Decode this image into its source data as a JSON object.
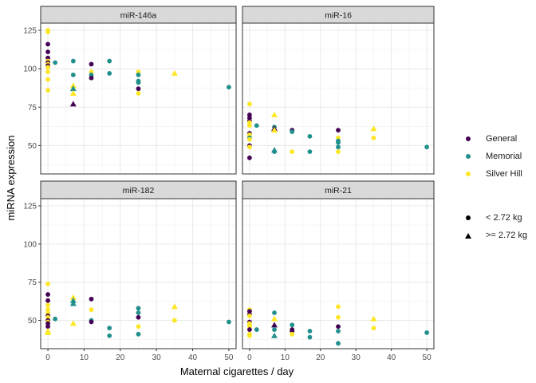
{
  "chart_data": {
    "type": "scatter",
    "xlabel": "Maternal cigarettes / day",
    "ylabel": "miRNA expression",
    "xlim": [
      -2,
      52
    ],
    "ylim": [
      31.5,
      129.7
    ],
    "x_ticks": [
      "0",
      "10",
      "20",
      "30",
      "40",
      "50"
    ],
    "y_ticks": [
      "50",
      "75",
      "100",
      "125"
    ],
    "grid": true,
    "legend_position": "right",
    "color_legend": [
      {
        "name": "General",
        "color": "#440154"
      },
      {
        "name": "Memorial",
        "color": "#21908C"
      },
      {
        "name": "Silver Hill",
        "color": "#FDE725"
      }
    ],
    "shape_legend": [
      {
        "name": "< 2.72 kg",
        "shape": "circle"
      },
      {
        "name": ">= 2.72 kg",
        "shape": "triangle"
      }
    ],
    "panels": [
      {
        "title": "miR-146a",
        "points": [
          [
            0,
            125,
            "Silver Hill",
            "circle"
          ],
          [
            0,
            124,
            "Silver Hill",
            "circle"
          ],
          [
            0,
            116,
            "General",
            "circle"
          ],
          [
            0,
            111,
            "General",
            "circle"
          ],
          [
            0,
            107,
            "General",
            "circle"
          ],
          [
            0,
            105,
            "Silver Hill",
            "circle"
          ],
          [
            0,
            104,
            "General",
            "circle"
          ],
          [
            0,
            103,
            "Silver Hill",
            "circle"
          ],
          [
            0,
            102,
            "General",
            "circle"
          ],
          [
            0,
            101,
            "Silver Hill",
            "circle"
          ],
          [
            0,
            98,
            "Silver Hill",
            "circle"
          ],
          [
            0,
            93,
            "Silver Hill",
            "circle"
          ],
          [
            0,
            86,
            "Silver Hill",
            "circle"
          ],
          [
            2,
            104,
            "Memorial",
            "circle"
          ],
          [
            7,
            105,
            "Memorial",
            "circle"
          ],
          [
            7,
            96,
            "Memorial",
            "circle"
          ],
          [
            7,
            89,
            "Silver Hill",
            "triangle"
          ],
          [
            7,
            87,
            "Memorial",
            "triangle"
          ],
          [
            7,
            84,
            "Silver Hill",
            "triangle"
          ],
          [
            7,
            77,
            "General",
            "triangle"
          ],
          [
            12,
            103,
            "General",
            "circle"
          ],
          [
            12,
            98,
            "Silver Hill",
            "circle"
          ],
          [
            12,
            96,
            "Memorial",
            "circle"
          ],
          [
            12,
            94,
            "General",
            "circle"
          ],
          [
            17,
            105,
            "Memorial",
            "circle"
          ],
          [
            17,
            97,
            "Memorial",
            "circle"
          ],
          [
            25,
            98,
            "Silver Hill",
            "circle"
          ],
          [
            25,
            96,
            "Memorial",
            "circle"
          ],
          [
            25,
            92,
            "Memorial",
            "circle"
          ],
          [
            25,
            91,
            "Memorial",
            "circle"
          ],
          [
            25,
            87,
            "General",
            "circle"
          ],
          [
            25,
            84,
            "Silver Hill",
            "circle"
          ],
          [
            35,
            97,
            "Silver Hill",
            "triangle"
          ],
          [
            50,
            88,
            "Memorial",
            "circle"
          ]
        ]
      },
      {
        "title": "miR-16",
        "points": [
          [
            0,
            77,
            "Silver Hill",
            "circle"
          ],
          [
            0,
            70,
            "General",
            "circle"
          ],
          [
            0,
            68,
            "General",
            "circle"
          ],
          [
            0,
            66,
            "General",
            "circle"
          ],
          [
            0,
            65,
            "Silver Hill",
            "circle"
          ],
          [
            0,
            63,
            "Silver Hill",
            "circle"
          ],
          [
            0,
            58,
            "General",
            "circle"
          ],
          [
            0,
            57,
            "Silver Hill",
            "circle"
          ],
          [
            0,
            56,
            "Silver Hill",
            "circle"
          ],
          [
            0,
            55,
            "Memorial",
            "circle"
          ],
          [
            0,
            54,
            "Silver Hill",
            "circle"
          ],
          [
            0,
            50,
            "General",
            "circle"
          ],
          [
            0,
            49,
            "Silver Hill",
            "circle"
          ],
          [
            0,
            42,
            "General",
            "circle"
          ],
          [
            2,
            63,
            "Memorial",
            "circle"
          ],
          [
            7,
            70,
            "Silver Hill",
            "triangle"
          ],
          [
            7,
            62,
            "Memorial",
            "circle"
          ],
          [
            7,
            61,
            "General",
            "triangle"
          ],
          [
            7,
            60,
            "Silver Hill",
            "triangle"
          ],
          [
            7,
            47,
            "Memorial",
            "triangle"
          ],
          [
            7,
            46,
            "Memorial",
            "circle"
          ],
          [
            12,
            60,
            "General",
            "circle"
          ],
          [
            12,
            59,
            "Memorial",
            "circle"
          ],
          [
            12,
            46,
            "Silver Hill",
            "circle"
          ],
          [
            17,
            56,
            "Memorial",
            "circle"
          ],
          [
            17,
            46,
            "Memorial",
            "circle"
          ],
          [
            25,
            60,
            "General",
            "circle"
          ],
          [
            25,
            55,
            "Silver Hill",
            "circle"
          ],
          [
            25,
            53,
            "Memorial",
            "circle"
          ],
          [
            25,
            52,
            "Memorial",
            "circle"
          ],
          [
            25,
            49,
            "Memorial",
            "circle"
          ],
          [
            25,
            46,
            "Silver Hill",
            "circle"
          ],
          [
            35,
            61,
            "Silver Hill",
            "triangle"
          ],
          [
            35,
            55,
            "Silver Hill",
            "circle"
          ],
          [
            50,
            49,
            "Memorial",
            "circle"
          ]
        ]
      },
      {
        "title": "miR-182",
        "points": [
          [
            0,
            74,
            "Silver Hill",
            "circle"
          ],
          [
            0,
            67,
            "General",
            "circle"
          ],
          [
            0,
            63,
            "General",
            "circle"
          ],
          [
            0,
            60,
            "Silver Hill",
            "circle"
          ],
          [
            0,
            57,
            "Silver Hill",
            "circle"
          ],
          [
            0,
            55,
            "Silver Hill",
            "circle"
          ],
          [
            0,
            53,
            "General",
            "circle"
          ],
          [
            0,
            52,
            "Silver Hill",
            "circle"
          ],
          [
            0,
            50,
            "General",
            "circle"
          ],
          [
            0,
            49,
            "Silver Hill",
            "circle"
          ],
          [
            0,
            48,
            "General",
            "circle"
          ],
          [
            0,
            46,
            "General",
            "circle"
          ],
          [
            0,
            43,
            "Silver Hill",
            "triangle"
          ],
          [
            0,
            42,
            "Silver Hill",
            "triangle"
          ],
          [
            2,
            51,
            "Memorial",
            "circle"
          ],
          [
            7,
            65,
            "Silver Hill",
            "triangle"
          ],
          [
            7,
            63,
            "Memorial",
            "triangle"
          ],
          [
            7,
            61,
            "Memorial",
            "triangle"
          ],
          [
            7,
            48,
            "Silver Hill",
            "triangle"
          ],
          [
            12,
            64,
            "General",
            "circle"
          ],
          [
            12,
            57,
            "Silver Hill",
            "circle"
          ],
          [
            12,
            50,
            "Memorial",
            "circle"
          ],
          [
            12,
            49,
            "General",
            "circle"
          ],
          [
            17,
            45,
            "Memorial",
            "circle"
          ],
          [
            17,
            40,
            "Memorial",
            "circle"
          ],
          [
            25,
            58,
            "Memorial",
            "circle"
          ],
          [
            25,
            55,
            "Memorial",
            "circle"
          ],
          [
            25,
            52,
            "General",
            "circle"
          ],
          [
            25,
            46,
            "Silver Hill",
            "circle"
          ],
          [
            25,
            41,
            "Memorial",
            "circle"
          ],
          [
            35,
            59,
            "Silver Hill",
            "triangle"
          ],
          [
            35,
            50,
            "Silver Hill",
            "circle"
          ],
          [
            50,
            49,
            "Memorial",
            "circle"
          ]
        ]
      },
      {
        "title": "miR-21",
        "points": [
          [
            0,
            57,
            "Silver Hill",
            "circle"
          ],
          [
            0,
            56,
            "General",
            "circle"
          ],
          [
            0,
            54,
            "General",
            "circle"
          ],
          [
            0,
            53,
            "Silver Hill",
            "circle"
          ],
          [
            0,
            49,
            "General",
            "circle"
          ],
          [
            0,
            48,
            "Silver Hill",
            "circle"
          ],
          [
            0,
            47,
            "Silver Hill",
            "circle"
          ],
          [
            0,
            46,
            "Silver Hill",
            "circle"
          ],
          [
            0,
            44,
            "General",
            "circle"
          ],
          [
            0,
            41,
            "Silver Hill",
            "circle"
          ],
          [
            0,
            40,
            "Silver Hill",
            "circle"
          ],
          [
            2,
            44,
            "Memorial",
            "circle"
          ],
          [
            7,
            55,
            "Memorial",
            "circle"
          ],
          [
            7,
            51,
            "Silver Hill",
            "triangle"
          ],
          [
            7,
            47,
            "General",
            "triangle"
          ],
          [
            7,
            44,
            "Memorial",
            "circle"
          ],
          [
            7,
            40,
            "Memorial",
            "triangle"
          ],
          [
            12,
            47,
            "Memorial",
            "circle"
          ],
          [
            12,
            44,
            "General",
            "circle"
          ],
          [
            12,
            43,
            "General",
            "circle"
          ],
          [
            12,
            41,
            "Silver Hill",
            "circle"
          ],
          [
            17,
            43,
            "Memorial",
            "circle"
          ],
          [
            17,
            39,
            "Memorial",
            "circle"
          ],
          [
            25,
            59,
            "Silver Hill",
            "circle"
          ],
          [
            25,
            52,
            "Silver Hill",
            "circle"
          ],
          [
            25,
            46,
            "General",
            "circle"
          ],
          [
            25,
            43,
            "Memorial",
            "circle"
          ],
          [
            25,
            35,
            "Memorial",
            "circle"
          ],
          [
            35,
            51,
            "Silver Hill",
            "triangle"
          ],
          [
            35,
            45,
            "Silver Hill",
            "circle"
          ],
          [
            50,
            42,
            "Memorial",
            "circle"
          ]
        ]
      }
    ]
  }
}
